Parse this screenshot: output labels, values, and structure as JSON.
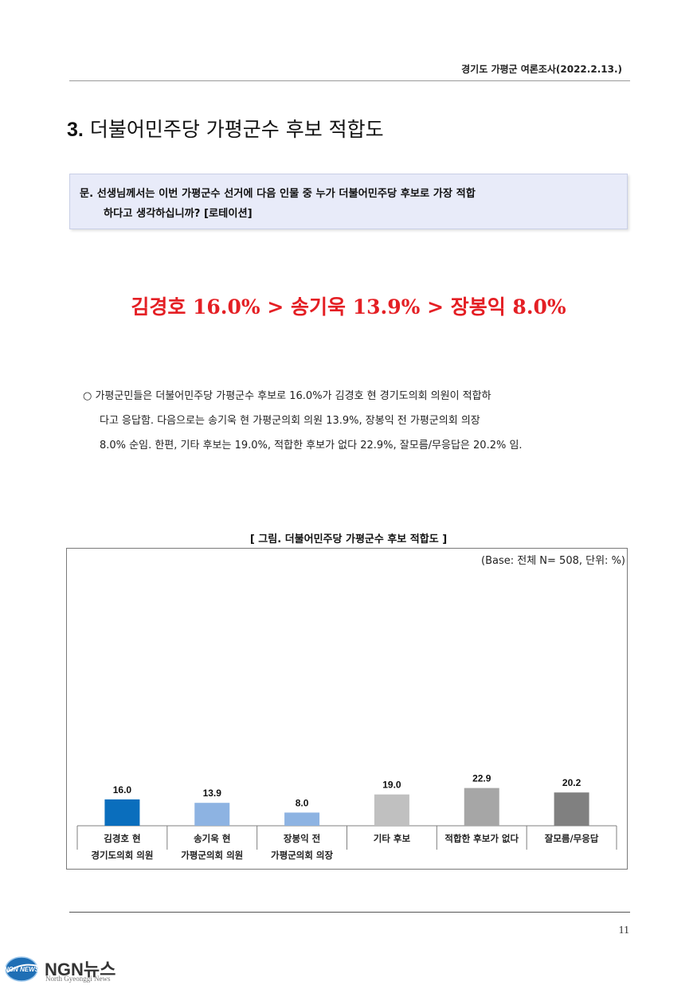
{
  "header": {
    "survey_title": "경기도 가평군 여론조사(2022.2.13.)"
  },
  "section": {
    "number": "3.",
    "title": "더불어민주당 가평군수 후보 적합도"
  },
  "question": {
    "line1": "문. 선생님께서는 이번 가평군수 선거에 다음 인물 중 누가 더불어민주당 후보로 가장 적합",
    "line2": "하다고 생각하십니까? [로테이션]"
  },
  "headline": "김경호 16.0% > 송기욱 13.9% > 장봉익 8.0%",
  "summary": {
    "line1": "○ 가평군민들은 더불어민주당 가평군수 후보로 16.0%가 김경호 현 경기도의회 의원이 적합하",
    "line2": "다고 응답함. 다음으로는 송기욱 현 가평군의회 의원 13.9%, 장봉익 전 가평군의회 의장",
    "line3": "8.0% 순임. 한편, 기타 후보는 19.0%, 적합한 후보가 없다 22.9%, 잘모름/무응답은 20.2% 임."
  },
  "figure": {
    "caption": "[ 그림. 더불어민주당 가평군수 후보 적합도 ]",
    "base_note": "(Base: 전체 N= 508, 단위: %)"
  },
  "chart_data": {
    "type": "bar",
    "categories": [
      [
        "김경호 현",
        "경기도의회 의원"
      ],
      [
        "송기욱 현",
        "가평군의회 의원"
      ],
      [
        "장봉익 전",
        "가평군의회 의장"
      ],
      [
        "기타 후보"
      ],
      [
        "적합한 후보가 없다"
      ],
      [
        "잘모름/무응답"
      ]
    ],
    "values": [
      16.0,
      13.9,
      8.0,
      19.0,
      22.9,
      20.2
    ],
    "value_labels": [
      "16.0",
      "13.9",
      "8.0",
      "19.0",
      "22.9",
      "20.2"
    ],
    "bar_colors": [
      "#0a6ebd",
      "#8db3e2",
      "#8db3e2",
      "#c0c0c0",
      "#a6a6a6",
      "#808080"
    ],
    "title": "",
    "xlabel": "",
    "ylabel": "",
    "ylim": [
      0,
      100
    ],
    "grid": false,
    "legend": "none"
  },
  "footer": {
    "page_number": "11"
  },
  "logo": {
    "icon_text": "NGN NEWS",
    "name": "NGN뉴스",
    "subtitle": "North Gyeonggi News"
  }
}
